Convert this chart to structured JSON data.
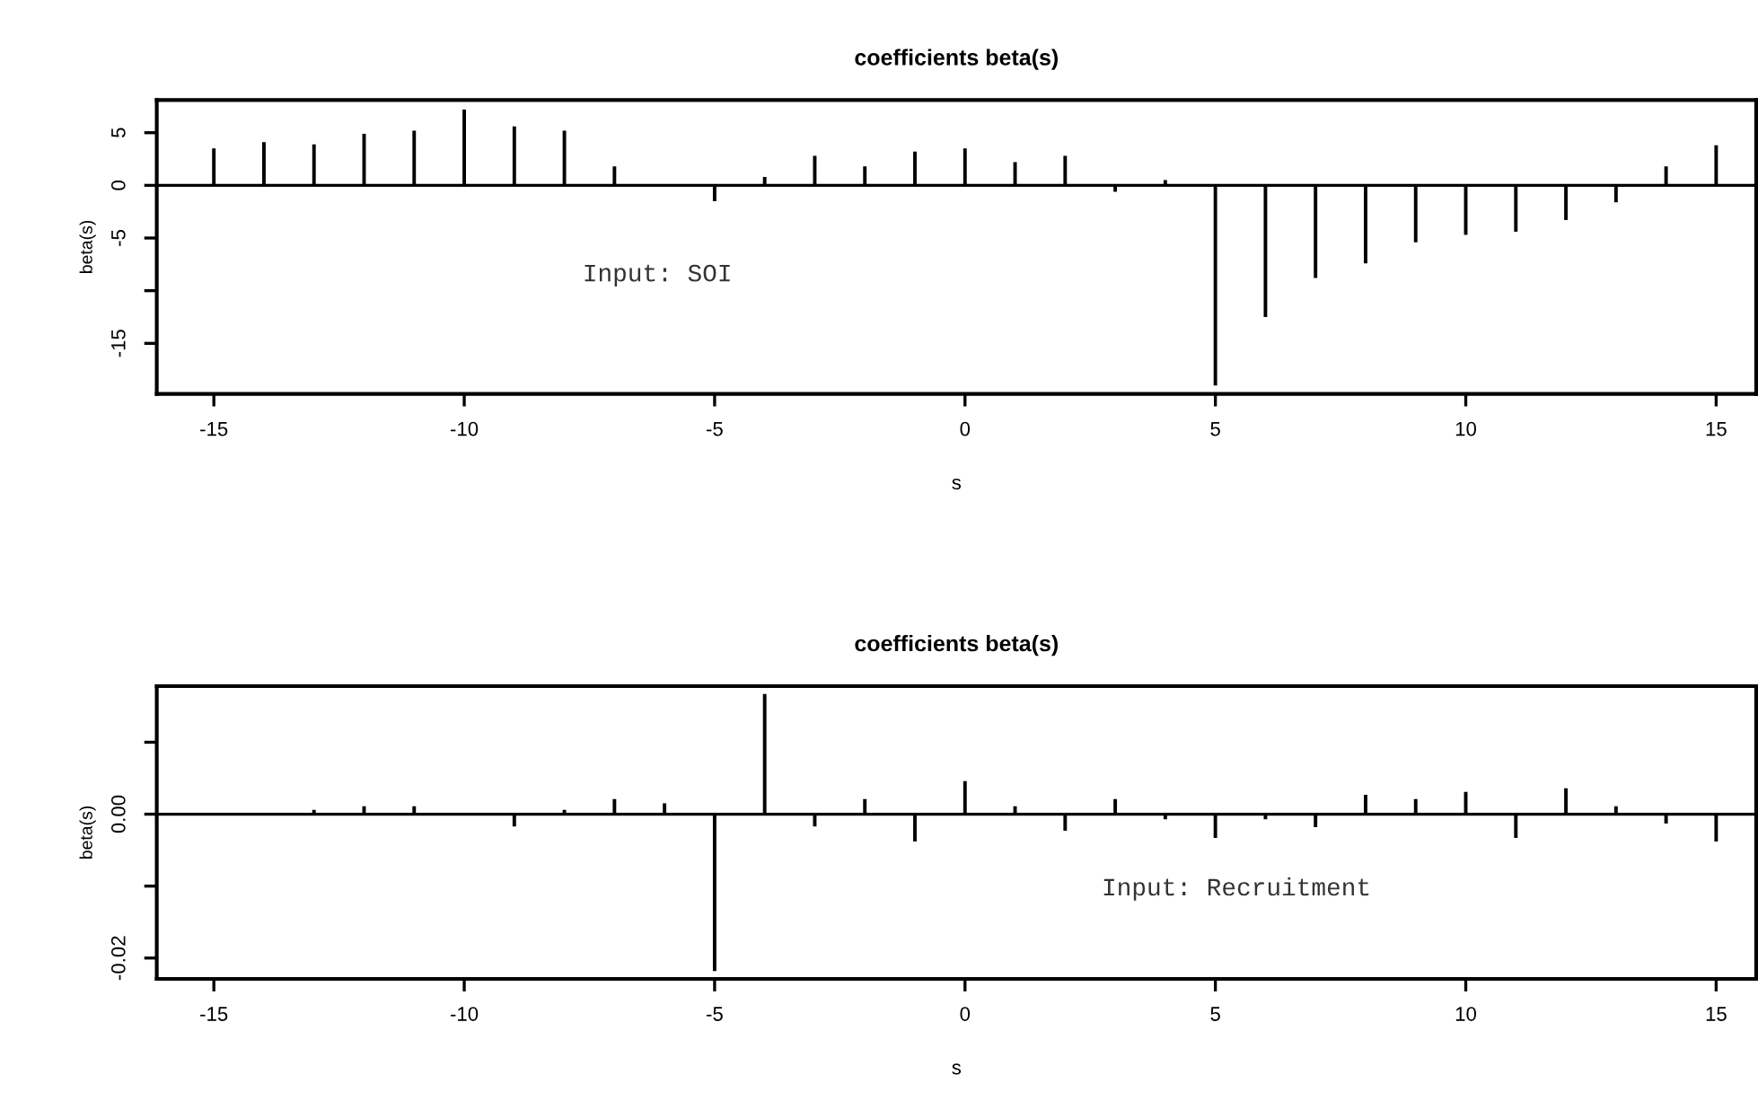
{
  "chart_data": [
    {
      "type": "bar",
      "title": "coefficients beta(s)",
      "xlabel": "s",
      "ylabel": "beta(s)",
      "annotations": [
        "Input: SOI"
      ],
      "x": [
        -15,
        -14,
        -13,
        -12,
        -11,
        -10,
        -9,
        -8,
        -7,
        -6,
        -5,
        -4,
        -3,
        -2,
        -1,
        0,
        1,
        2,
        3,
        4,
        5,
        6,
        7,
        8,
        9,
        10,
        11,
        12,
        13,
        14,
        15
      ],
      "series": [
        {
          "color": "#000000",
          "values": [
            3.5,
            4.1,
            3.9,
            4.9,
            5.2,
            7.2,
            5.6,
            5.2,
            1.8,
            0,
            -1.5,
            0.8,
            2.8,
            1.8,
            3.2,
            3.5,
            2.2,
            2.8,
            -0.6,
            0.5,
            -19.0,
            -12.5,
            -8.8,
            -7.4,
            -5.4,
            -4.7,
            -4.4,
            -3.3,
            -1.6,
            1.8,
            3.8
          ]
        }
      ],
      "xlim": [
        -16.14,
        15.8
      ],
      "xticks": [
        -15,
        -10,
        -5,
        0,
        5,
        10,
        15
      ],
      "ylim": [
        -19.8,
        8.1
      ],
      "yticks": [
        -15,
        {
          "value": -10,
          "label": null
        },
        -5,
        0,
        5
      ],
      "ref_lines": [
        {
          "axis": "y",
          "value": 0,
          "color": "#000000"
        }
      ]
    },
    {
      "type": "bar",
      "title": "coefficients beta(s)",
      "xlabel": "s",
      "ylabel": "beta(s)",
      "annotations": [
        "Input: Recruitment"
      ],
      "x": [
        -15,
        -14,
        -13,
        -12,
        -11,
        -10,
        -9,
        -8,
        -7,
        -6,
        -5,
        -4,
        -3,
        -2,
        -1,
        0,
        1,
        2,
        3,
        4,
        5,
        6,
        7,
        8,
        9,
        10,
        11,
        12,
        13,
        14,
        15
      ],
      "series": [
        {
          "color": "#000000",
          "values": [
            0,
            0,
            0.0006,
            0.0011,
            0.0011,
            0,
            -0.0017,
            0.0006,
            0.0021,
            0.0015,
            -0.0218,
            0.0167,
            -0.0017,
            0.0021,
            -0.0038,
            0.0046,
            0.0011,
            -0.0023,
            0.0021,
            -0.0007,
            -0.0033,
            -0.0007,
            -0.0018,
            0.0027,
            0.0021,
            0.0031,
            -0.0033,
            0.0036,
            0.0011,
            -0.0013,
            -0.0038
          ]
        }
      ],
      "xlim": [
        -16.14,
        15.8
      ],
      "xticks": [
        -15,
        -10,
        -5,
        0,
        5,
        10,
        15
      ],
      "ylim": [
        -0.0229,
        0.0178
      ],
      "yticks": [
        {
          "value": -0.02,
          "label": "-0.02"
        },
        {
          "value": -0.01,
          "label": null
        },
        {
          "value": 0,
          "label": "0.00"
        },
        {
          "value": 0.01,
          "label": null
        }
      ],
      "ref_lines": [
        {
          "axis": "y",
          "value": 0,
          "color": "#000000"
        }
      ]
    }
  ]
}
